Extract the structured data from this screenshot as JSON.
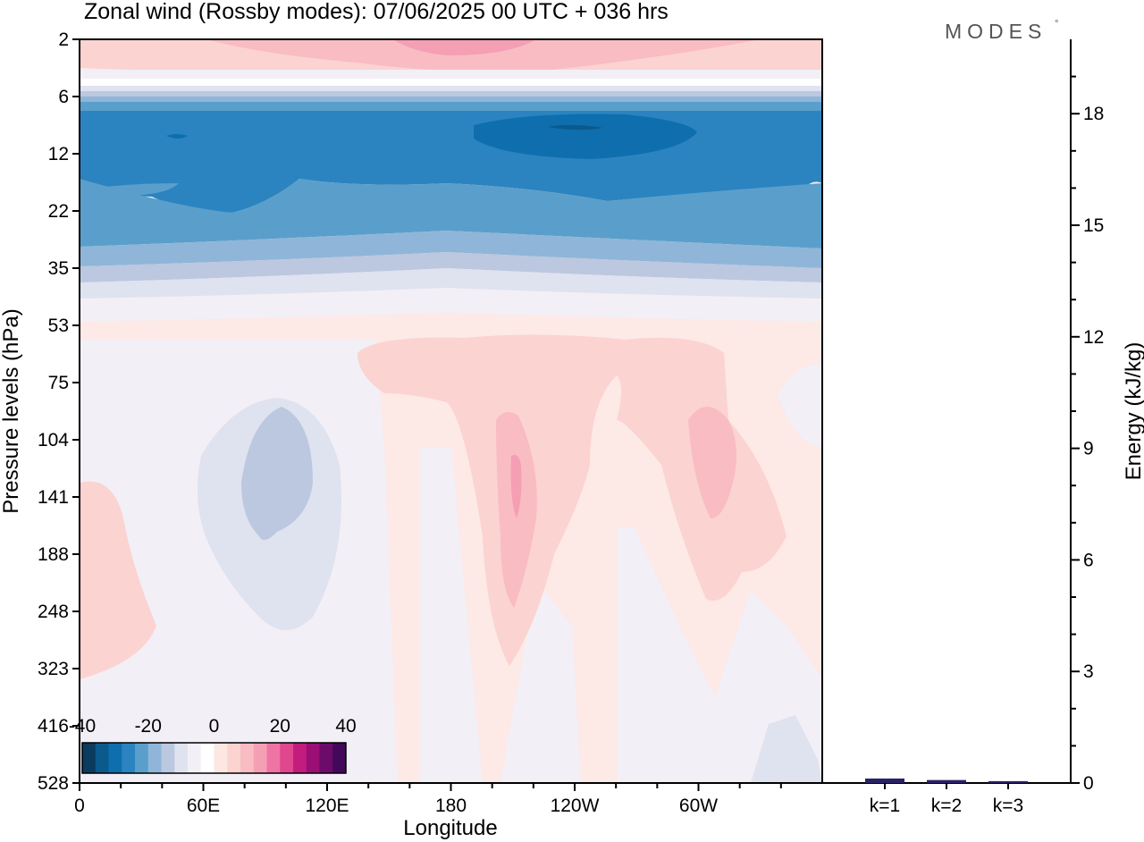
{
  "chart_data": {
    "type": "heatmap",
    "title": "Zonal wind (Rossby modes):  07/06/2025  00 UTC  + 036 hrs",
    "logo": "MODES",
    "logo_mark": "°",
    "xlabel": "Longitude",
    "ylabel": "Pressure levels (hPa)",
    "x_ticks": [
      "0",
      "60E",
      "120E",
      "180",
      "120W",
      "60W"
    ],
    "x_range": [
      0,
      360
    ],
    "y_ticks": [
      "2",
      "6",
      "12",
      "22",
      "35",
      "53",
      "75",
      "104",
      "141",
      "188",
      "248",
      "323",
      "416",
      "528"
    ],
    "y_range_hPa": [
      2,
      528
    ],
    "colorbar": {
      "tick_labels": [
        "-40",
        "-20",
        "0",
        "20",
        "40"
      ],
      "range": [
        -40,
        40
      ],
      "colors": [
        "#0b3b5e",
        "#0b5a8c",
        "#0f6fae",
        "#2b84c0",
        "#5a9fcb",
        "#8fb6d8",
        "#bcc7e0",
        "#dfe2ef",
        "#f2eff6",
        "#ffffff",
        "#fde7e3",
        "#fbd3d1",
        "#f9bcc2",
        "#f59fb4",
        "#ef74a4",
        "#e0478f",
        "#c21d7e",
        "#9b0e74",
        "#6d0b6a",
        "#420859"
      ]
    },
    "field_approx": {
      "description_levels_hPa_to_zonal_mean_m_s": {
        "2": 10,
        "4": 4,
        "6": -8,
        "9": -30,
        "12": -32,
        "17": -26,
        "22": -24,
        "28": -18,
        "35": -10,
        "45": -4,
        "53": 2,
        "75": 4,
        "104": 3,
        "141": 2,
        "188": 1,
        "248": 1,
        "323": 0,
        "416": 0,
        "528": 0
      },
      "features": [
        {
          "name": "upper-level positive maximum",
          "lon": 180,
          "level_hPa": 2,
          "value": 20
        },
        {
          "name": "stratospheric jet core",
          "lon": 200,
          "level_hPa": 10,
          "value": -38
        },
        {
          "name": "negative anomaly",
          "lon": 80,
          "level_hPa": 141,
          "value": -8
        },
        {
          "name": "positive anomaly",
          "lon": 200,
          "level_hPa": 141,
          "value": 16
        },
        {
          "name": "positive anomaly",
          "lon": 290,
          "level_hPa": 120,
          "value": 12
        }
      ]
    },
    "energy_panel": {
      "ylabel": "Energy (kJ/kg)",
      "y_ticks": [
        "0",
        "3",
        "6",
        "9",
        "12",
        "15",
        "18"
      ],
      "ylim": [
        0,
        20
      ],
      "categories": [
        "k=1",
        "k=2",
        "k=3"
      ],
      "values": [
        0.12,
        0.08,
        0.05
      ],
      "bar_color": "#2a2266"
    }
  }
}
